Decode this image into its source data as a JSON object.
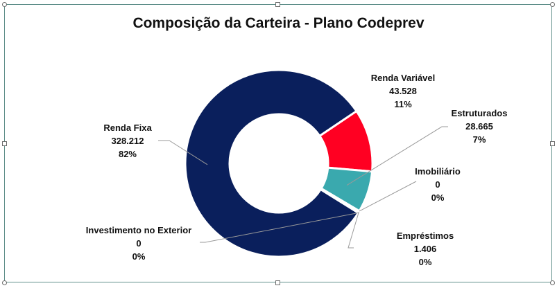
{
  "chart_data": {
    "type": "pie",
    "title": "Composição da Carteira - Plano Codeprev",
    "slices": [
      {
        "label": "Renda Variável",
        "value": 43.528,
        "value_text": "43.528",
        "percent_text": "11%",
        "color": "#ff0022"
      },
      {
        "label": "Estruturados",
        "value": 28.665,
        "value_text": "28.665",
        "percent_text": "7%",
        "color": "#3aa9ae"
      },
      {
        "label": "Imobiliário",
        "value": 0,
        "value_text": "0",
        "percent_text": "0%",
        "color": "#9aa3ad"
      },
      {
        "label": "Empréstimos",
        "value": 1.406,
        "value_text": "1.406",
        "percent_text": "0%",
        "color": "#7a2a8e"
      },
      {
        "label": "Investimento no Exterior",
        "value": 0,
        "value_text": "0",
        "percent_text": "0%",
        "color": "#f2a900"
      },
      {
        "label": "Renda Fixa",
        "value": 328.212,
        "value_text": "328.212",
        "percent_text": "82%",
        "color": "#0a1f5c"
      }
    ],
    "donut": true,
    "legend": "none"
  }
}
